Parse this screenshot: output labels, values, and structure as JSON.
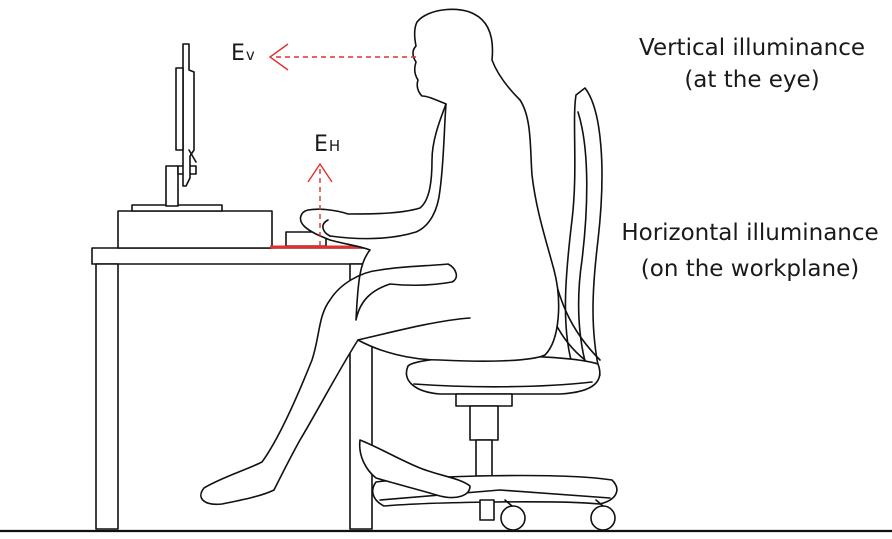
{
  "labels": {
    "vertical_title": "Vertical illuminance",
    "vertical_subtitle": "(at the eye)",
    "horizontal_title": "Horizontal illuminance",
    "horizontal_subtitle": "(on the workplane)",
    "ev_main": "E",
    "ev_sub": "v",
    "eh_main": "E",
    "eh_sub": "H"
  },
  "colors": {
    "line": "#111111",
    "measure": "#e03030",
    "background": "#ffffff"
  },
  "icons": {
    "figure": "seated-person-icon",
    "desk": "desk-icon",
    "monitor": "monitor-icon",
    "chair": "office-chair-icon"
  }
}
